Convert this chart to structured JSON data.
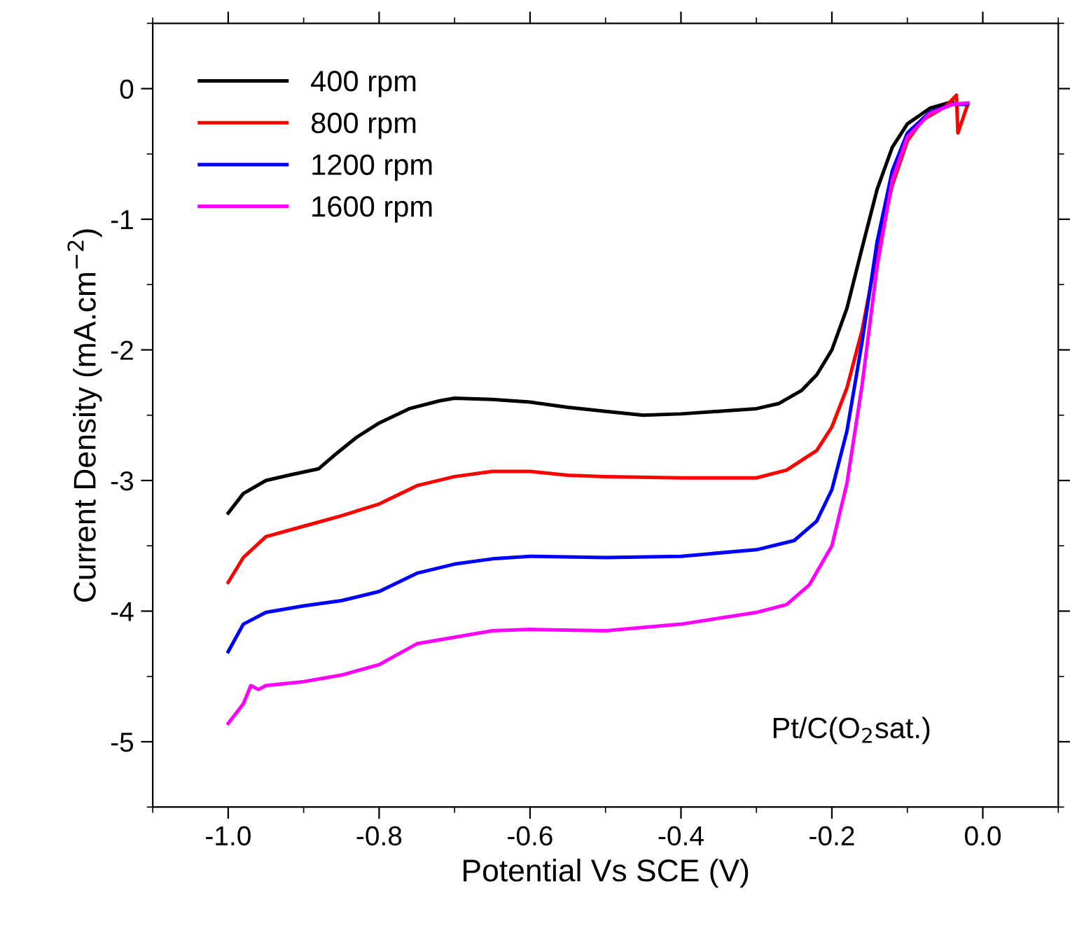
{
  "chart_data": {
    "type": "line",
    "xlabel": "Potential Vs SCE (V)",
    "ylabel": "Current Density (mA.cm$^{−2}$)",
    "annotations": [
      "Pt/C(O$_{2}$sat.)"
    ],
    "xlim": [
      -1.1,
      0.1
    ],
    "xticks": [
      {
        "value": -1.0,
        "label": "-1.0"
      },
      {
        "value": -0.8,
        "label": "-0.8"
      },
      {
        "value": -0.6,
        "label": "-0.6"
      },
      {
        "value": -0.4,
        "label": "-0.4"
      },
      {
        "value": -0.2,
        "label": "-0.2"
      },
      {
        "value": 0.0,
        "label": "0.0"
      }
    ],
    "ylim": [
      -5.5,
      0.5
    ],
    "yticks": [
      -5,
      -4,
      -3,
      -2,
      -1,
      0
    ],
    "legend": "top left",
    "grid": false,
    "marker": "none",
    "line_style": "solid",
    "series": [
      {
        "name": "400 rpm",
        "color": "#000000",
        "x": [
          -1.0,
          -0.98,
          -0.95,
          -0.92,
          -0.88,
          -0.86,
          -0.83,
          -0.8,
          -0.76,
          -0.72,
          -0.7,
          -0.65,
          -0.6,
          -0.55,
          -0.5,
          -0.45,
          -0.4,
          -0.35,
          -0.3,
          -0.27,
          -0.24,
          -0.22,
          -0.2,
          -0.18,
          -0.16,
          -0.14,
          -0.12,
          -0.1,
          -0.07,
          -0.04
        ],
        "values": [
          -3.25,
          -3.1,
          -3.0,
          -2.96,
          -2.91,
          -2.81,
          -2.67,
          -2.56,
          -2.45,
          -2.39,
          -2.37,
          -2.38,
          -2.4,
          -2.44,
          -2.47,
          -2.5,
          -2.49,
          -2.47,
          -2.45,
          -2.41,
          -2.31,
          -2.19,
          -2.0,
          -1.68,
          -1.22,
          -0.77,
          -0.45,
          -0.27,
          -0.15,
          -0.1
        ]
      },
      {
        "name": "800 rpm",
        "color": "#ff0000",
        "x": [
          -1.0,
          -0.98,
          -0.95,
          -0.9,
          -0.85,
          -0.8,
          -0.75,
          -0.7,
          -0.65,
          -0.6,
          -0.55,
          -0.5,
          -0.4,
          -0.3,
          -0.26,
          -0.22,
          -0.2,
          -0.18,
          -0.16,
          -0.14,
          -0.12,
          -0.1,
          -0.08,
          -0.05,
          -0.035,
          -0.033,
          -0.02
        ],
        "values": [
          -3.78,
          -3.59,
          -3.43,
          -3.35,
          -3.27,
          -3.18,
          -3.04,
          -2.97,
          -2.93,
          -2.93,
          -2.96,
          -2.97,
          -2.98,
          -2.98,
          -2.92,
          -2.77,
          -2.59,
          -2.29,
          -1.85,
          -1.25,
          -0.74,
          -0.4,
          -0.24,
          -0.14,
          -0.05,
          -0.34,
          -0.12
        ]
      },
      {
        "name": "1200 rpm",
        "color": "#0000ff",
        "x": [
          -1.0,
          -0.98,
          -0.95,
          -0.9,
          -0.85,
          -0.8,
          -0.75,
          -0.7,
          -0.65,
          -0.6,
          -0.5,
          -0.4,
          -0.3,
          -0.25,
          -0.22,
          -0.2,
          -0.18,
          -0.16,
          -0.14,
          -0.12,
          -0.1,
          -0.07,
          -0.04,
          -0.02
        ],
        "values": [
          -4.31,
          -4.1,
          -4.01,
          -3.96,
          -3.92,
          -3.85,
          -3.71,
          -3.64,
          -3.6,
          -3.58,
          -3.59,
          -3.58,
          -3.53,
          -3.46,
          -3.31,
          -3.07,
          -2.62,
          -1.94,
          -1.17,
          -0.63,
          -0.34,
          -0.18,
          -0.12,
          -0.12
        ]
      },
      {
        "name": "1600 rpm",
        "color": "#ff00ff",
        "x": [
          -1.0,
          -0.98,
          -0.97,
          -0.96,
          -0.95,
          -0.9,
          -0.85,
          -0.8,
          -0.75,
          -0.7,
          -0.65,
          -0.6,
          -0.5,
          -0.4,
          -0.3,
          -0.26,
          -0.23,
          -0.2,
          -0.18,
          -0.16,
          -0.14,
          -0.12,
          -0.1,
          -0.07,
          -0.04,
          -0.02
        ],
        "values": [
          -4.86,
          -4.71,
          -4.57,
          -4.6,
          -4.57,
          -4.54,
          -4.49,
          -4.41,
          -4.25,
          -4.2,
          -4.15,
          -4.14,
          -4.15,
          -4.1,
          -4.01,
          -3.95,
          -3.8,
          -3.5,
          -3.02,
          -2.27,
          -1.36,
          -0.7,
          -0.37,
          -0.19,
          -0.12,
          -0.11
        ]
      }
    ]
  }
}
